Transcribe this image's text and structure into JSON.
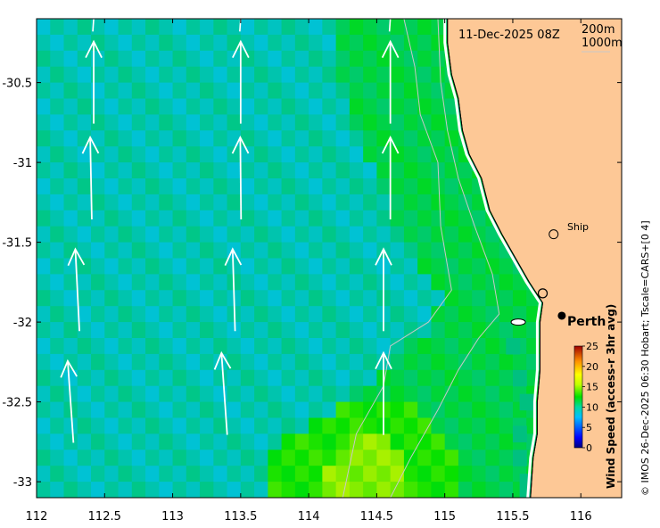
{
  "header": {
    "timestamp": "11-Dec-2025 08Z"
  },
  "isobath_legend": [
    "200m",
    "1000m"
  ],
  "places": {
    "city": "Perth",
    "ship": "Ship"
  },
  "colorbar": {
    "label": "Wind Speed (access-r 3hr avg)",
    "ticks": [
      "0",
      "5",
      "10",
      "15",
      "20",
      "25"
    ],
    "tick_values": [
      0,
      5,
      10,
      15,
      20,
      25
    ]
  },
  "credit": "© IMOS 26-Dec-2025 06:30 Hobart; Tscale=CARS+[0 4]",
  "colors": {
    "land": "#fdc896",
    "isobath": "#c8c8c8",
    "arrow": "#ffffff",
    "colormap": [
      "#00007f",
      "#0000ff",
      "#007fff",
      "#00ffff",
      "#00bf7f",
      "#00e000",
      "#7fff00",
      "#ffff00",
      "#ff7f00",
      "#ff0000",
      "#7f0000"
    ]
  },
  "chart_data": {
    "type": "heatmap",
    "title": "11-Dec-2025 08Z",
    "xlabel": "",
    "ylabel": "",
    "xlim": [
      112,
      116.3
    ],
    "ylim": [
      -33.1,
      -30.1
    ],
    "x_ticks": [
      112,
      112.5,
      113,
      113.5,
      114,
      114.5,
      115,
      115.5,
      116
    ],
    "x_tick_labels": [
      "112",
      "112.5",
      "113",
      "113.5",
      "114",
      "114.5",
      "115",
      "115.5",
      "116"
    ],
    "y_ticks": [
      -30.5,
      -31,
      -31.5,
      -32,
      -32.5,
      -33
    ],
    "y_tick_labels": [
      "-30.5",
      "-31",
      "-31.5",
      "-32",
      "-32.5",
      "-33"
    ],
    "field": "Wind Speed (access-r 3hr avg)",
    "units": "",
    "colorbar_range": [
      0,
      25
    ],
    "cell_size_deg": 0.1,
    "field_rows": [
      "11111111111111111111112222222222222222222222222222",
      "11111111111111111111112222222222222222222222222222",
      "11111111111111111111112222222222222222222222222222",
      "11111111111111111111112222222222222222222222222222",
      "11111111111111111111111222222222222222222222222222",
      "11111111111111111111111222222222222222222222222222",
      "11111111111111111111111222222222222222222222222222",
      "11111111111111111111111122222222222222222222222222",
      "11111111111111111111111122222222222222222222222222",
      "11111111111111111111111112222222222222222222222222",
      "11111111111111111111111112222222222222222222222222",
      "11111111111111111111111111222222222222222222222222",
      "11111111111111111111111111222222222222222222222222",
      "11111111111111111111111111122222222222222222222222",
      "11111111111111111111111111112222222222222222222222",
      "11111111111111111111111111112222222222222222222222",
      "11111111111111111111111111111222222222222222222222",
      "11111111111111111111111111111122222222222222222222",
      "11111111111111111111111111111222222222222222222222",
      "11111111111111111111111111111222222222222222222222",
      "11111111111111111111111111122222222222222222222222",
      "11111111111111111111111111222222222222222222222222",
      "11111111111111111111111112222222222222222222222222",
      "11111111111111111111111222222222222222222222222222",
      "11111111111111111111113333332222222222222222222222",
      "11111111111111111111333333333222222222222222222222",
      "11111111111111111133333444333322222222222222222222",
      "11111111111111111333334444433332222222222222222222",
      "11111111111111111333344444433332222222222222222222",
      "11111111111111111333344444433332222222222222222222"
    ],
    "field_levels": [
      0,
      9,
      11,
      13,
      15
    ],
    "wind_arrows": [
      {
        "lon": 112.42,
        "lat": -30.5,
        "u": 0.0,
        "v": 1
      },
      {
        "lon": 113.5,
        "lat": -30.5,
        "u": 0.0,
        "v": 1
      },
      {
        "lon": 114.6,
        "lat": -30.5,
        "u": 0.0,
        "v": 1
      },
      {
        "lon": 112.4,
        "lat": -31.1,
        "u": -0.02,
        "v": 1
      },
      {
        "lon": 113.5,
        "lat": -31.1,
        "u": -0.01,
        "v": 1
      },
      {
        "lon": 114.6,
        "lat": -31.1,
        "u": 0.0,
        "v": 1
      },
      {
        "lon": 112.3,
        "lat": -31.8,
        "u": -0.05,
        "v": 1
      },
      {
        "lon": 113.45,
        "lat": -31.8,
        "u": -0.03,
        "v": 1
      },
      {
        "lon": 114.55,
        "lat": -31.8,
        "u": 0.0,
        "v": 1
      },
      {
        "lon": 112.25,
        "lat": -32.5,
        "u": -0.07,
        "v": 1
      },
      {
        "lon": 113.38,
        "lat": -32.45,
        "u": -0.07,
        "v": 1
      },
      {
        "lon": 114.55,
        "lat": -32.45,
        "u": 0.0,
        "v": 1
      }
    ],
    "coastline": [
      [
        115.02,
        -30.1
      ],
      [
        115.02,
        -30.25
      ],
      [
        115.05,
        -30.45
      ],
      [
        115.1,
        -30.6
      ],
      [
        115.13,
        -30.8
      ],
      [
        115.18,
        -30.95
      ],
      [
        115.27,
        -31.1
      ],
      [
        115.33,
        -31.3
      ],
      [
        115.42,
        -31.45
      ],
      [
        115.52,
        -31.6
      ],
      [
        115.62,
        -31.75
      ],
      [
        115.72,
        -31.88
      ],
      [
        115.7,
        -32.0
      ],
      [
        115.7,
        -32.1
      ],
      [
        115.7,
        -32.3
      ],
      [
        115.68,
        -32.5
      ],
      [
        115.68,
        -32.7
      ],
      [
        115.65,
        -32.85
      ],
      [
        115.63,
        -33.1
      ]
    ],
    "isobath_200m": [
      [
        114.95,
        -30.1
      ],
      [
        114.97,
        -30.5
      ],
      [
        115.02,
        -30.8
      ],
      [
        115.1,
        -31.1
      ],
      [
        115.22,
        -31.4
      ],
      [
        115.35,
        -31.7
      ],
      [
        115.4,
        -31.95
      ],
      [
        115.25,
        -32.1
      ],
      [
        115.1,
        -32.3
      ],
      [
        114.95,
        -32.55
      ],
      [
        114.75,
        -32.85
      ],
      [
        114.6,
        -33.1
      ]
    ],
    "isobath_1000m": [
      [
        114.7,
        -30.1
      ],
      [
        114.78,
        -30.4
      ],
      [
        114.82,
        -30.7
      ],
      [
        114.95,
        -31.0
      ],
      [
        114.97,
        -31.4
      ],
      [
        115.05,
        -31.8
      ],
      [
        114.88,
        -32.0
      ],
      [
        114.6,
        -32.15
      ],
      [
        114.55,
        -32.4
      ],
      [
        114.35,
        -32.7
      ],
      [
        114.25,
        -33.1
      ]
    ],
    "points": [
      {
        "name": "Ship",
        "lon": 115.8,
        "lat": -31.45
      },
      {
        "name": "Perth",
        "lon": 115.86,
        "lat": -31.96
      },
      {
        "name": "ship-track-marker",
        "lon": 115.72,
        "lat": -31.82
      },
      {
        "name": "offshore-island",
        "lon": 115.54,
        "lat": -32.0
      }
    ]
  }
}
